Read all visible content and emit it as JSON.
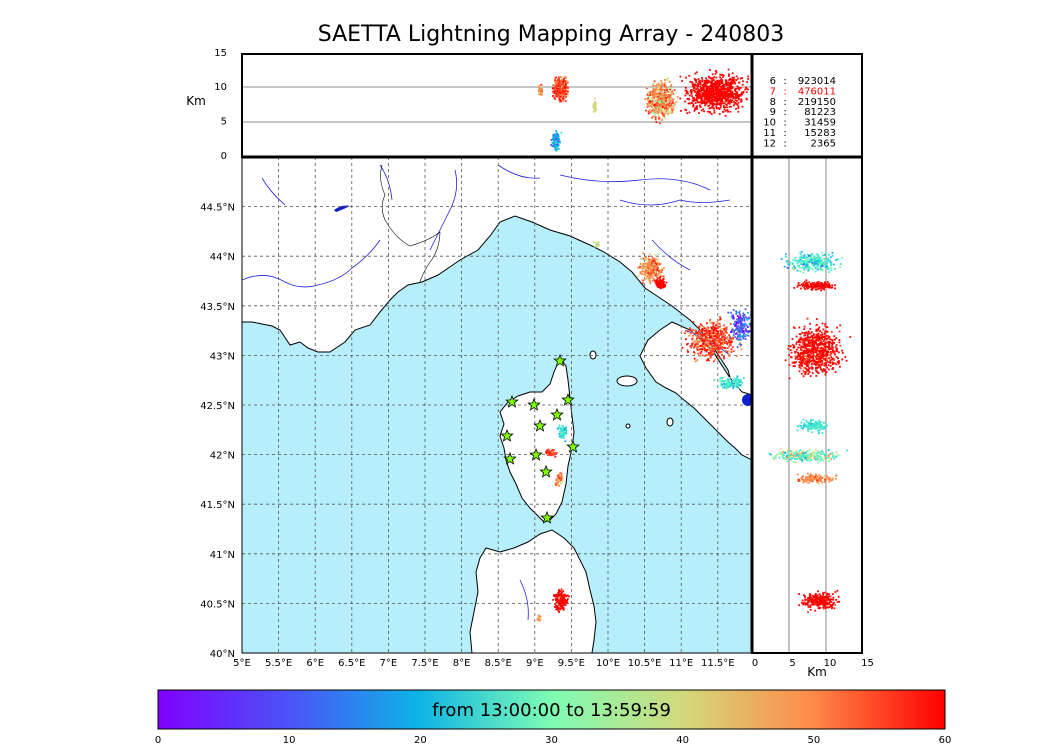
{
  "title": "SAETTA Lightning Mapping Array - 240803",
  "colors": {
    "sea": "#b6eefb",
    "land": "#ffffff"
  },
  "top_panel": {
    "ylabel": "Km",
    "yticks": [
      "0",
      "5",
      "10",
      "15"
    ]
  },
  "side_panel": {
    "xlabel": "Km",
    "xticks": [
      "0",
      "5",
      "10",
      "15"
    ]
  },
  "stats": [
    {
      "level": "6",
      "sep": ":",
      "count": "923014",
      "highlight": false
    },
    {
      "level": "7",
      "sep": ":",
      "count": "476011",
      "highlight": true
    },
    {
      "level": "8",
      "sep": ":",
      "count": "219150",
      "highlight": false
    },
    {
      "level": "9",
      "sep": ":",
      "count": "81223",
      "highlight": false
    },
    {
      "level": "10",
      "sep": ":",
      "count": "31459",
      "highlight": false
    },
    {
      "level": "11",
      "sep": ":",
      "count": "15283",
      "highlight": false
    },
    {
      "level": "12",
      "sep": ":",
      "count": "2365",
      "highlight": false
    }
  ],
  "map": {
    "lon_labels": [
      "5°E",
      "5.5°E",
      "6°E",
      "6.5°E",
      "7°E",
      "7.5°E",
      "8°E",
      "8.5°E",
      "9°E",
      "9.5°E",
      "10°E",
      "10.5°E",
      "11°E",
      "11.5°E"
    ],
    "lat_labels": [
      "40°N",
      "40.5°N",
      "41°N",
      "41.5°N",
      "42°N",
      "42.5°N",
      "43°N",
      "43.5°N",
      "44°N",
      "44.5°N"
    ]
  },
  "colorbar": {
    "label": "from 13:00:00 to 13:59:59",
    "ticks": [
      "0",
      "10",
      "20",
      "30",
      "40",
      "50",
      "60"
    ]
  }
}
